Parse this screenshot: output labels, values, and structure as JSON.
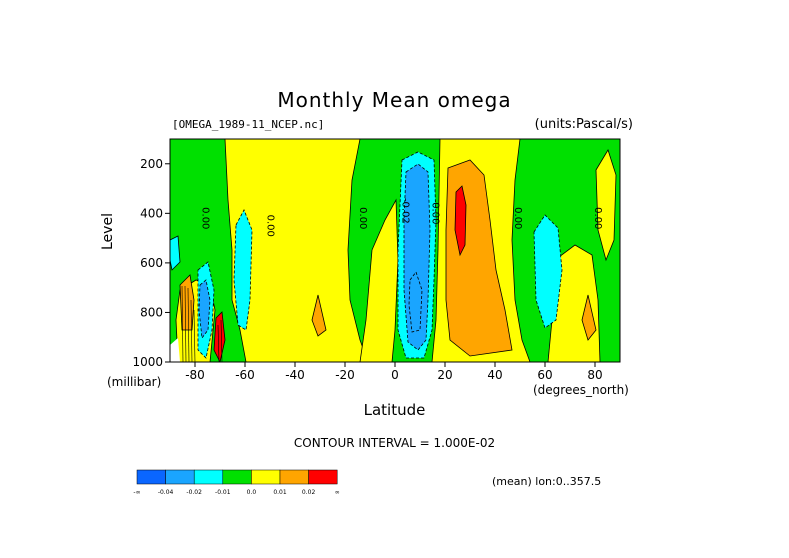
{
  "chart_data": {
    "type": "heatmap",
    "title": "Monthly Mean omega",
    "subtitle_left": "[OMEGA_1989-11_NCEP.nc]",
    "subtitle_right": "(units:Pascal/s)",
    "xlabel": "Latitude",
    "xunit": "(degrees_north)",
    "ylabel": "Level",
    "yunit": "(millibar)",
    "xlim": [
      -90,
      90
    ],
    "ylim": [
      1000,
      100
    ],
    "x_ticks": [
      -80,
      -60,
      -40,
      -20,
      0,
      20,
      40,
      60,
      80
    ],
    "y_ticks": [
      200,
      400,
      600,
      800,
      1000
    ],
    "contour_interval": "CONTOUR INTERVAL = 1.000E-02",
    "mean_note": "(mean) lon:0..357.5",
    "contour_labels": [
      {
        "text": "0.00",
        "lat": -77,
        "lev": 420
      },
      {
        "text": "0.00",
        "lat": -51,
        "lev": 450
      },
      {
        "text": "0.00",
        "lat": -14,
        "lev": 420
      },
      {
        "text": "-0.02",
        "lat": 3,
        "lev": 390
      },
      {
        "text": "0.00",
        "lat": 15,
        "lev": 400
      },
      {
        "text": "0.00",
        "lat": 48,
        "lev": 420
      },
      {
        "text": "0.00",
        "lat": 80,
        "lev": 420
      }
    ],
    "colorbar": {
      "colors": [
        "#0a66ff",
        "#1aa5ff",
        "#00ffff",
        "#00e000",
        "#ffff00",
        "#ffa500",
        "#ff0000"
      ],
      "labels": [
        "-∞",
        "-0.04",
        "-0.02",
        "-0.01",
        "0.0",
        "0.01",
        "0.02",
        "∞"
      ]
    }
  }
}
